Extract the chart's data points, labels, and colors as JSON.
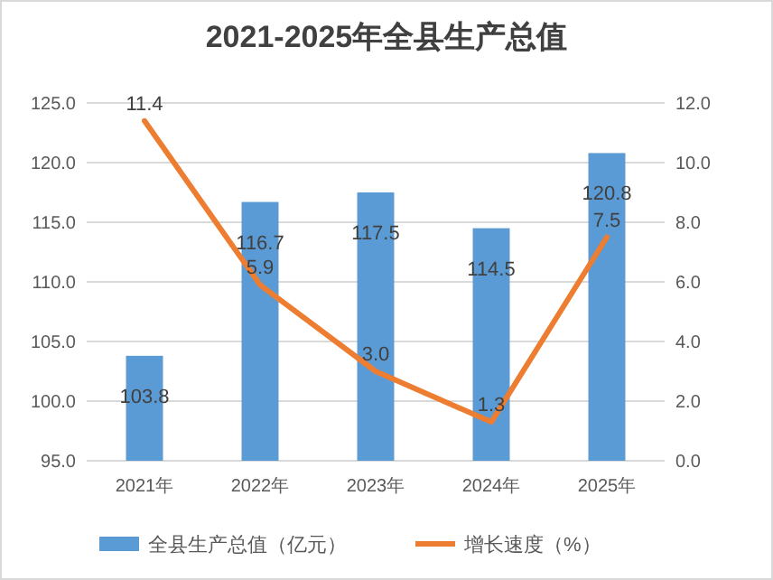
{
  "chart_data": {
    "type": "bar",
    "title": "2021-2025年全县生产总值",
    "categories": [
      "2021年",
      "2022年",
      "2023年",
      "2024年",
      "2025年"
    ],
    "series": [
      {
        "name": "全县生产总值（亿元）",
        "color": "#5b9bd5",
        "values": [
          103.8,
          116.7,
          117.5,
          114.5,
          120.8
        ],
        "value_labels": [
          "103.8",
          "116.7",
          "117.5",
          "114.5",
          "120.8"
        ]
      },
      {
        "name": "增长速度（%）",
        "type": "line",
        "axis": "y2",
        "color": "#ed7d31",
        "values": [
          11.4,
          5.9,
          3.0,
          1.3,
          7.5
        ],
        "value_labels": [
          "11.4",
          "5.9",
          "3.0",
          "1.3",
          "7.5"
        ]
      }
    ],
    "ylim": [
      95,
      125
    ],
    "yticks": [
      {
        "value": 95,
        "label": "95.0"
      },
      {
        "value": 100,
        "label": "100.0"
      },
      {
        "value": 105,
        "label": "105.0"
      },
      {
        "value": 110,
        "label": "110.0"
      },
      {
        "value": 115,
        "label": "115.0"
      },
      {
        "value": 120,
        "label": "120.0"
      },
      {
        "value": 125,
        "label": "125.0"
      }
    ],
    "y2lim": [
      0,
      12
    ],
    "y2ticks": [
      {
        "value": 0,
        "label": "0.0"
      },
      {
        "value": 2,
        "label": "2.0"
      },
      {
        "value": 4,
        "label": "4.0"
      },
      {
        "value": 6,
        "label": "6.0"
      },
      {
        "value": 8,
        "label": "8.0"
      },
      {
        "value": 10,
        "label": "10.0"
      },
      {
        "value": 12,
        "label": "12.0"
      }
    ],
    "grid": "y",
    "legend": "bottom",
    "marker": "none",
    "line_style": "solid"
  }
}
